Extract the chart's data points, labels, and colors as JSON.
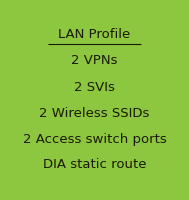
{
  "bg_color": "#8dc63f",
  "box_color": "#8dc63f",
  "border_color": "#5a8a1a",
  "text_lines": [
    "LAN Profile",
    "2 VPNs",
    "2 SVIs",
    "2 Wireless SSIDs",
    "2 Access switch ports",
    "DIA static route"
  ],
  "underline_line": 0,
  "font_size": 9.5,
  "text_color": "#1a1a00",
  "fig_width": 1.89,
  "fig_height": 2.0,
  "dpi": 100
}
